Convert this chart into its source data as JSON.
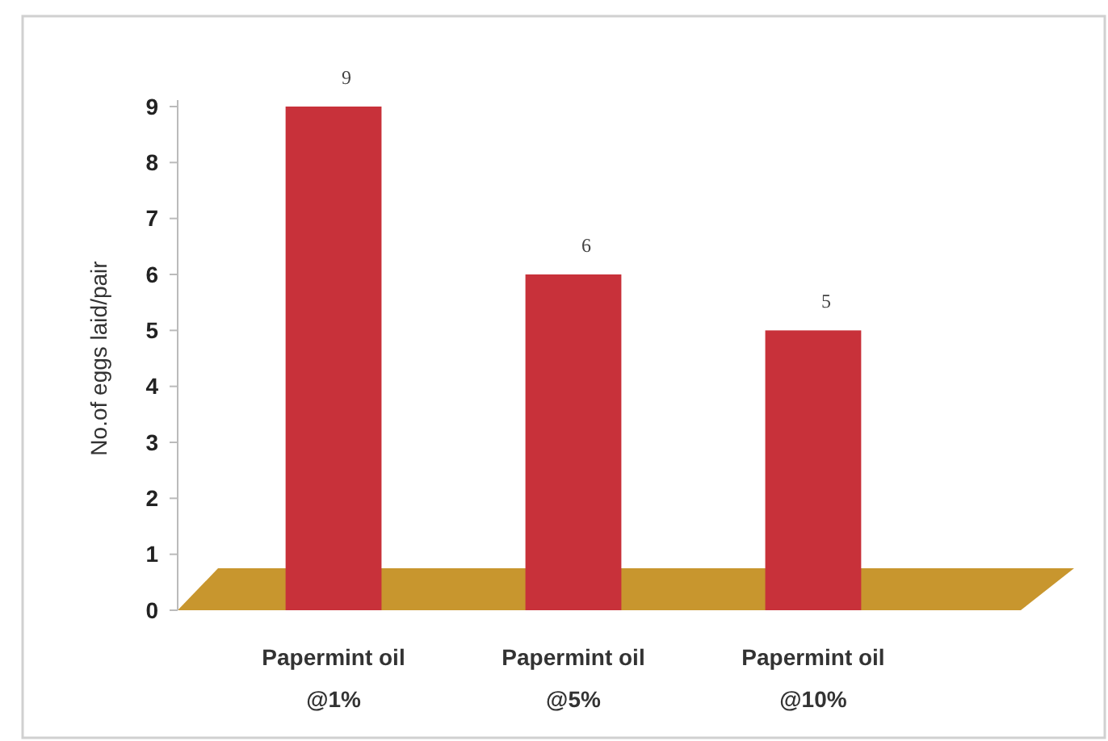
{
  "chart_data": {
    "type": "bar",
    "ylabel": "No.of eggs laid/pair",
    "categories": [
      "Papermint oil @1%",
      "Papermint oil @5%",
      "Papermint oil @10%"
    ],
    "values": [
      9,
      6,
      5
    ],
    "color": "#c8313a",
    "data_labels": true,
    "ylim": [
      0,
      9
    ],
    "yticks": [
      0,
      1,
      2,
      3,
      4,
      5,
      6,
      7,
      8,
      9
    ],
    "grid": false
  }
}
